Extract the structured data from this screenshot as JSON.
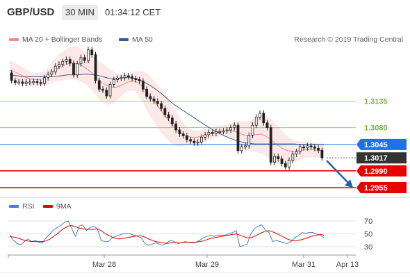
{
  "header": {
    "symbol": "GBP/USD",
    "timeframe": "30 MIN",
    "time": "01:34:12 CET"
  },
  "legend_main": [
    {
      "label": "MA 20 + Bollinger Bands",
      "color": "#f28b8b"
    },
    {
      "label": "MA 50",
      "color": "#2f5f9e"
    }
  ],
  "watermark": "Research © 2019 Trading Central",
  "legend_rsi": [
    {
      "label": "RSI",
      "color": "#4a7fd4"
    },
    {
      "label": "9MA",
      "color": "#e60000"
    }
  ],
  "chart_data": {
    "type": "candlestick",
    "instrument": "GBP/USD",
    "price_levels": [
      {
        "label": "1.3135",
        "value": 1.3135,
        "style": "green-line",
        "color": "#9acd6e"
      },
      {
        "label": "1.3080",
        "value": 1.308,
        "style": "green-line",
        "color": "#9acd6e"
      },
      {
        "label": "1.3045",
        "value": 1.3045,
        "style": "blue-line",
        "color": "#1a73e8"
      },
      {
        "label": "1.3017",
        "value": 1.3017,
        "style": "current-price",
        "color": "#333333"
      },
      {
        "label": "1.2990",
        "value": 1.299,
        "style": "red-line",
        "color": "#e60000"
      },
      {
        "label": "1.2955",
        "value": 1.2955,
        "style": "red-line",
        "color": "#e60000"
      }
    ],
    "x_ticks": [
      "Mar 28",
      "Mar 29",
      "Mar 31",
      "Apr 13"
    ],
    "rsi_ticks": [
      70,
      50,
      30
    ],
    "price_path": [
      1.3194,
      1.3178,
      1.3174,
      1.3175,
      1.3172,
      1.3175,
      1.3175,
      1.3176,
      1.3174,
      1.3172,
      1.3184,
      1.3191,
      1.3196,
      1.3208,
      1.3212,
      1.3218,
      1.3222,
      1.3214,
      1.319,
      1.3213,
      1.3226,
      1.322,
      1.3242,
      1.3232,
      1.3178,
      1.316,
      1.3158,
      1.3146,
      1.317,
      1.318,
      1.3183,
      1.3184,
      1.3188,
      1.3186,
      1.3182,
      1.318,
      1.3177,
      1.316,
      1.3145,
      1.314,
      1.3135,
      1.313,
      1.312,
      1.3107,
      1.31,
      1.3088,
      1.3075,
      1.3067,
      1.3063,
      1.3055,
      1.3052,
      1.3048,
      1.305,
      1.306,
      1.3065,
      1.307,
      1.3068,
      1.3072,
      1.3072,
      1.3073,
      1.3075,
      1.308,
      1.3085,
      1.3032,
      1.304,
      1.3042,
      1.3064,
      1.3085,
      1.3102,
      1.311,
      1.309,
      1.308,
      1.3008,
      1.302,
      1.3015,
      1.3005,
      1.2998,
      1.3012,
      1.3025,
      1.303,
      1.304,
      1.3038,
      1.3042,
      1.304,
      1.3037,
      1.3033,
      1.3017
    ],
    "ma20": [
      1.32,
      1.3197,
      1.3194,
      1.319,
      1.3186,
      1.3183,
      1.3181,
      1.318,
      1.318,
      1.3182,
      1.3186,
      1.3192,
      1.3198,
      1.3203,
      1.3207,
      1.321,
      1.3213,
      1.3215,
      1.3214,
      1.3212,
      1.3208,
      1.3203,
      1.3197,
      1.319,
      1.3182,
      1.3175,
      1.317,
      1.3166,
      1.3164,
      1.3164,
      1.3166,
      1.317,
      1.3174,
      1.3176,
      1.3177,
      1.3174,
      1.3168,
      1.316,
      1.315,
      1.314,
      1.313,
      1.312,
      1.311,
      1.31,
      1.309,
      1.3082,
      1.3075,
      1.3068,
      1.3064,
      1.3061,
      1.306,
      1.306,
      1.3061,
      1.3063,
      1.3065,
      1.3068,
      1.307,
      1.3072,
      1.3073,
      1.3074,
      1.3074,
      1.3073,
      1.3071,
      1.3068,
      1.3065,
      1.3063,
      1.3063,
      1.3065,
      1.3066,
      1.3066,
      1.3063,
      1.3058,
      1.3052,
      1.3045,
      1.304,
      1.3035,
      1.3032,
      1.3031,
      1.3031,
      1.3032,
      1.3033,
      1.3034,
      1.3034,
      1.3034,
      1.3033,
      1.3032,
      1.3031
    ],
    "ma50": [
      1.319,
      1.3189,
      1.3188,
      1.3187,
      1.3186,
      1.3186,
      1.3186,
      1.3186,
      1.3186,
      1.3186,
      1.3186,
      1.3186,
      1.3186,
      1.3187,
      1.3188,
      1.3189,
      1.319,
      1.319,
      1.319,
      1.319,
      1.3191,
      1.3191,
      1.3191,
      1.319,
      1.3189,
      1.3187,
      1.3185,
      1.3183,
      1.3182,
      1.3182,
      1.3183,
      1.3184,
      1.3184,
      1.3184,
      1.3183,
      1.3181,
      1.3178,
      1.3174,
      1.317,
      1.3165,
      1.316,
      1.3154,
      1.3148,
      1.3141,
      1.3134,
      1.3128,
      1.3123,
      1.3118,
      1.3113,
      1.3108,
      1.3103,
      1.3098,
      1.3093,
      1.3088,
      1.3083,
      1.3078,
      1.3074,
      1.307,
      1.3066,
      1.3062,
      1.3059,
      1.3056,
      1.3053,
      1.3051,
      1.3049,
      1.3048,
      1.3047,
      1.3046,
      1.3046,
      1.3046,
      1.3046,
      1.3046,
      1.3046,
      1.3046,
      1.3046,
      1.3046,
      1.3046,
      1.3046,
      1.3046,
      1.3045,
      1.3045,
      1.3045,
      1.3045,
      1.3045,
      1.3045,
      1.3045,
      1.3045
    ],
    "bb_half_width": [
      0.002,
      0.002,
      0.0019,
      0.0018,
      0.0017,
      0.0016,
      0.0015,
      0.0014,
      0.0014,
      0.0015,
      0.0017,
      0.002,
      0.0023,
      0.0026,
      0.0029,
      0.0031,
      0.0033,
      0.0034,
      0.0035,
      0.0035,
      0.0034,
      0.0033,
      0.0035,
      0.0037,
      0.0039,
      0.004,
      0.004,
      0.0038,
      0.0035,
      0.003,
      0.0025,
      0.0021,
      0.0019,
      0.0019,
      0.002,
      0.0024,
      0.003,
      0.0036,
      0.004,
      0.0042,
      0.0044,
      0.0045,
      0.0045,
      0.0044,
      0.0042,
      0.0038,
      0.0033,
      0.0027,
      0.0021,
      0.0017,
      0.0015,
      0.0014,
      0.0013,
      0.0013,
      0.0013,
      0.0012,
      0.0012,
      0.0011,
      0.0011,
      0.0012,
      0.0013,
      0.0016,
      0.002,
      0.0026,
      0.0028,
      0.003,
      0.0032,
      0.0035,
      0.0038,
      0.004,
      0.0042,
      0.0043,
      0.0043,
      0.0041,
      0.0038,
      0.0034,
      0.003,
      0.0026,
      0.0022,
      0.002,
      0.0018,
      0.0017,
      0.0016,
      0.0015,
      0.0015,
      0.0015,
      0.0015
    ],
    "rsi": [
      48,
      40,
      35,
      33,
      38,
      42,
      38,
      40,
      37,
      36,
      44,
      50,
      56,
      60,
      63,
      68,
      70,
      58,
      46,
      62,
      64,
      55,
      60,
      62,
      58,
      40,
      38,
      38,
      44,
      46,
      48,
      50,
      51,
      50,
      48,
      46,
      44,
      35,
      32,
      34,
      36,
      34,
      32,
      36,
      40,
      38,
      35,
      36,
      38,
      37,
      36,
      37,
      40,
      44,
      46,
      48,
      46,
      48,
      48,
      48,
      50,
      52,
      55,
      30,
      32,
      34,
      50,
      58,
      62,
      64,
      56,
      52,
      38,
      40,
      38,
      36,
      35,
      38,
      44,
      47,
      52,
      51,
      52,
      52,
      50,
      48,
      44
    ],
    "rsi_ma": [
      46,
      45,
      44,
      42,
      40,
      39,
      38,
      38,
      38,
      38,
      39,
      42,
      46,
      50,
      55,
      59,
      62,
      63,
      61,
      59,
      58,
      57,
      57,
      57,
      58,
      55,
      51,
      48,
      45,
      43,
      42,
      43,
      44,
      45,
      46,
      47,
      47,
      45,
      42,
      40,
      38,
      37,
      36,
      35,
      36,
      36,
      36,
      36,
      37,
      37,
      37,
      37,
      38,
      39,
      41,
      43,
      44,
      45,
      46,
      47,
      48,
      49,
      50,
      48,
      46,
      44,
      44,
      46,
      49,
      52,
      54,
      55,
      53,
      51,
      48,
      45,
      42,
      40,
      39,
      40,
      41,
      43,
      45,
      47,
      48,
      49,
      48
    ]
  }
}
